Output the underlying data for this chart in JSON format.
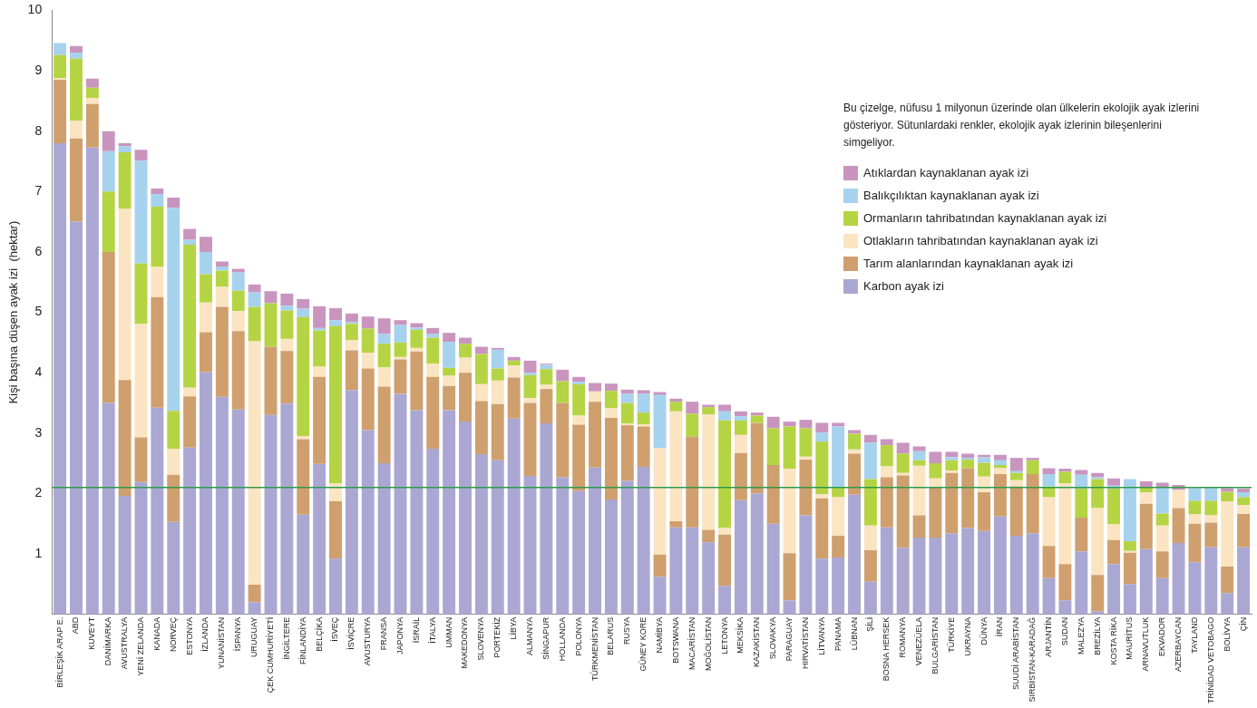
{
  "chart_data": {
    "type": "bar",
    "stacked": true,
    "ylabel": "Kişi başına düşen ayak izi  (hektar)",
    "ylim": [
      0,
      10
    ],
    "yticks": [
      1,
      2,
      3,
      4,
      5,
      6,
      7,
      8,
      9,
      10
    ],
    "grid": false,
    "legend": "top right",
    "annotations": [
      "Bu çizelge, nüfusu 1 milyonun üzerinde olan ülkelerin ekolojik ayak izlerini gösteriyor. Sütunlardaki renkler, ekolojik ayak izlerinin bileşenlerini simgeliyor."
    ],
    "ref_lines": [
      {
        "axis": "y",
        "value": 2.1,
        "color": "#2e9a4a"
      }
    ],
    "categories": [
      "BİRLEŞİK ARAP E.",
      "ABD",
      "KUVEYT",
      "DANİMARKA",
      "AVUSTRALYA",
      "YENİ ZELANDA",
      "KANADA",
      "NORVEÇ",
      "ESTONYA",
      "İZLANDA",
      "YUNANİSTAN",
      "İSPANYA",
      "URUGUAY",
      "ÇEK CUMHURİYETİ",
      "İNGİLTERE",
      "FİNLANDİYA",
      "BELÇİKA",
      "İSVEÇ",
      "İSVİÇRE",
      "AVUSTURYA",
      "FRANSA",
      "JAPONYA",
      "İSRAİL",
      "İTALYA",
      "UMMAN",
      "MAKEDONYA",
      "SLOVENYA",
      "PORTEKİZ",
      "LİBYA",
      "ALMANYA",
      "SİNGAPUR",
      "HOLLANDA",
      "POLONYA",
      "TÜRKMENİSTAN",
      "BELARUS",
      "RUSYA",
      "GÜNEY KORE",
      "NAMİBYA",
      "BOTSWANA",
      "MACARİSTAN",
      "MOĞOLİSTAN",
      "LETONYA",
      "MEKSİKA",
      "KAZAKİSTAN",
      "SLOVAKYA",
      "PARAGUAY",
      "HIRVATİSTAN",
      "LİTVANYA",
      "PANAMA",
      "LÜBNAN",
      "ŞİLİ",
      "BOSNA HERSEK",
      "ROMANYA",
      "VENEZÜELA",
      "BULGARİSTAN",
      "TÜRKİYE",
      "UKRAYNA",
      "DÜNYA",
      "İRAN",
      "SUUDİ ARABİSTAN",
      "SIRBİSTAN-KARADAĞ",
      "ARJANTİN",
      "SUDAN",
      "MALEZYA",
      "BREZİLYA",
      "KOSTA RİKA",
      "MAURİTUS",
      "ARNAVUTLUK",
      "EKVADOR",
      "AZERBAYCAN",
      "TAYLAND",
      "TRİNİDAD VETOBAGO",
      "BOLİVYA",
      "ÇİN"
    ],
    "series": [
      {
        "name": "Karbon ayak izi",
        "color": "#aba7d3",
        "values": [
          7.8,
          6.5,
          7.73,
          3.5,
          1.96,
          2.19,
          3.42,
          1.53,
          2.76,
          4.01,
          3.6,
          3.39,
          0.2,
          3.3,
          3.49,
          1.65,
          2.49,
          0.92,
          3.71,
          3.05,
          2.5,
          3.65,
          3.38,
          2.74,
          3.38,
          3.19,
          2.65,
          2.55,
          3.24,
          2.29,
          3.16,
          2.27,
          2.04,
          2.43,
          1.9,
          2.21,
          2.44,
          0.62,
          1.44,
          1.44,
          1.19,
          0.47,
          1.89,
          2.0,
          1.5,
          0.23,
          1.64,
          0.92,
          0.94,
          1.98,
          0.54,
          1.44,
          1.1,
          1.27,
          1.27,
          1.34,
          1.43,
          1.38,
          1.62,
          1.3,
          1.34,
          0.6,
          0.23,
          1.04,
          0.05,
          0.83,
          0.5,
          1.08,
          0.6,
          1.18,
          0.86,
          1.11,
          0.35,
          1.11
        ]
      },
      {
        "name": "Tarım alanlarından kaynaklanan ayak izi",
        "color": "#cf9f6e",
        "values": [
          1.05,
          1.38,
          0.72,
          2.5,
          1.92,
          0.74,
          1.83,
          0.78,
          0.85,
          0.66,
          1.49,
          1.3,
          0.29,
          1.13,
          0.87,
          1.25,
          1.44,
          0.95,
          0.66,
          1.02,
          1.27,
          0.57,
          0.97,
          1.19,
          0.4,
          0.81,
          0.88,
          0.93,
          0.68,
          1.21,
          0.57,
          1.23,
          1.1,
          1.09,
          1.35,
          0.92,
          0.67,
          0.37,
          0.1,
          1.5,
          0.21,
          0.85,
          0.78,
          1.17,
          0.97,
          0.78,
          0.92,
          1.0,
          0.36,
          0.68,
          0.52,
          0.83,
          1.2,
          0.37,
          0.83,
          1.0,
          0.99,
          0.64,
          0.7,
          0.82,
          0.98,
          0.53,
          0.6,
          0.56,
          0.6,
          0.4,
          0.52,
          0.75,
          0.44,
          0.58,
          0.64,
          0.41,
          0.44,
          0.55
        ]
      },
      {
        "name": "Otlakların tahribatından kaynaklanan ayak izi",
        "color": "#fbe4c2",
        "values": [
          0.03,
          0.29,
          0.1,
          0,
          2.83,
          1.88,
          0.5,
          0.43,
          0.14,
          0.49,
          0.33,
          0.33,
          4.03,
          0,
          0.2,
          0.05,
          0.17,
          0.3,
          0.17,
          0.26,
          0.32,
          0.04,
          0.06,
          0.22,
          0.17,
          0.25,
          0.28,
          0.39,
          0.2,
          0.08,
          0.07,
          0,
          0.15,
          0.17,
          0.16,
          0.03,
          0.03,
          1.76,
          1.82,
          0,
          1.91,
          0.11,
          0.3,
          0,
          0,
          1.4,
          0.05,
          0.07,
          0.64,
          0.07,
          0.41,
          0.18,
          0.04,
          0.82,
          0.15,
          0.04,
          0,
          0.26,
          0.1,
          0.1,
          0,
          0.81,
          1.34,
          0,
          1.11,
          0.26,
          0.03,
          0.19,
          0.43,
          0.3,
          0.16,
          0.12,
          1.08,
          0.15
        ]
      },
      {
        "name": "Ormanların tahribatından kaynaklanan ayak izi",
        "color": "#b5d444",
        "values": [
          0.38,
          1.03,
          0.17,
          1.0,
          0.94,
          1.0,
          1.0,
          0.63,
          2.37,
          0.47,
          0.27,
          0.34,
          0.57,
          0.72,
          0.47,
          1.97,
          0.6,
          2.6,
          0.27,
          0.4,
          0.39,
          0.24,
          0.3,
          0.43,
          0.13,
          0.23,
          0.5,
          0.2,
          0.08,
          0.38,
          0.26,
          0.36,
          0.52,
          0,
          0.29,
          0.34,
          0.2,
          0,
          0.16,
          0.38,
          0.12,
          1.78,
          0.24,
          0.12,
          0.61,
          0.7,
          0.47,
          0.87,
          0.16,
          0.26,
          0.77,
          0.35,
          0.32,
          0.09,
          0.25,
          0.17,
          0.14,
          0.23,
          0.05,
          0.12,
          0.23,
          0.18,
          0.19,
          0.48,
          0.48,
          0.59,
          0.16,
          0.08,
          0.2,
          0,
          0.22,
          0.24,
          0.16,
          0.13
        ]
      },
      {
        "name": "Balıkçılıktan kaynaklanan ayak izi",
        "color": "#a6d2ee",
        "values": [
          0.2,
          0.1,
          0,
          0.67,
          0.1,
          1.7,
          0.21,
          3.36,
          0.08,
          0.37,
          0.07,
          0.3,
          0.24,
          0,
          0.08,
          0.14,
          0.04,
          0.1,
          0.03,
          0,
          0.16,
          0.29,
          0.04,
          0.06,
          0.43,
          0,
          0,
          0.31,
          0,
          0.04,
          0.07,
          0,
          0.04,
          0,
          0,
          0.15,
          0.31,
          0.88,
          0,
          0,
          0,
          0.15,
          0.07,
          0,
          0,
          0,
          0,
          0.15,
          1.01,
          0,
          0.6,
          0,
          0,
          0.15,
          0,
          0.05,
          0.03,
          0.09,
          0.08,
          0.03,
          0,
          0.2,
          0,
          0.23,
          0.03,
          0.05,
          1.03,
          0,
          0.44,
          0,
          0.21,
          0.22,
          0,
          0.08
        ]
      },
      {
        "name": "Atıklardan kaynaklanan ayak izi",
        "color": "#c995bf",
        "values": [
          0,
          0.11,
          0.15,
          0.33,
          0.05,
          0.18,
          0.09,
          0.17,
          0.18,
          0.25,
          0.08,
          0.06,
          0.13,
          0.2,
          0.2,
          0.16,
          0.36,
          0.2,
          0.14,
          0.2,
          0.26,
          0.08,
          0.07,
          0.1,
          0.15,
          0.1,
          0.12,
          0.03,
          0.06,
          0.2,
          0.02,
          0.19,
          0.08,
          0.14,
          0.12,
          0.07,
          0.06,
          0.05,
          0.05,
          0.2,
          0.04,
          0.11,
          0.08,
          0.05,
          0.19,
          0.08,
          0.14,
          0.16,
          0.06,
          0.06,
          0.13,
          0.1,
          0.18,
          0.08,
          0.19,
          0.09,
          0.07,
          0.04,
          0.09,
          0.22,
          0.04,
          0.1,
          0.05,
          0.08,
          0.07,
          0.12,
          0,
          0.1,
          0.07,
          0.08,
          0,
          0,
          0.06,
          0.06
        ]
      }
    ]
  }
}
